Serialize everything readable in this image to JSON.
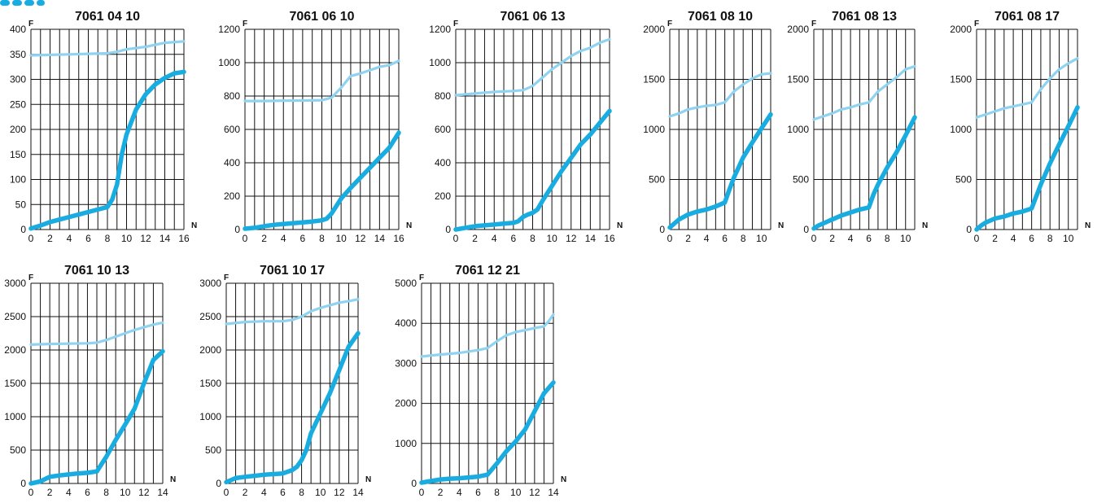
{
  "colors": {
    "upper_line": "#8fd3f1",
    "lower_line": "#19ace0",
    "brand": "#19ace0",
    "grid": "#111111"
  },
  "chart_data": [
    {
      "type": "line",
      "title": "7061 04 10",
      "xlabel": "N",
      "ylabel": "F",
      "xlim": [
        0,
        16
      ],
      "ylim": [
        0,
        400
      ],
      "xticks": [
        0,
        2,
        4,
        6,
        8,
        10,
        12,
        14,
        16
      ],
      "yticks": [
        0,
        50,
        100,
        150,
        200,
        250,
        300,
        350,
        400
      ],
      "series": [
        {
          "x": [
            0,
            2,
            4,
            6,
            8,
            9,
            10,
            12,
            14,
            16
          ],
          "values": [
            348,
            349,
            350,
            351,
            352,
            355,
            360,
            365,
            373,
            376
          ]
        },
        {
          "x": [
            0,
            1,
            2,
            3,
            4,
            5,
            6,
            7,
            8,
            8.5,
            9,
            9.5,
            10,
            11,
            12,
            13,
            14,
            15,
            16
          ],
          "values": [
            2,
            8,
            15,
            20,
            25,
            30,
            35,
            40,
            45,
            60,
            90,
            150,
            190,
            240,
            270,
            290,
            303,
            312,
            315
          ]
        }
      ]
    },
    {
      "type": "line",
      "title": "7061 06 10",
      "xlabel": "N",
      "ylabel": "F",
      "xlim": [
        0,
        16
      ],
      "ylim": [
        0,
        1200
      ],
      "xticks": [
        0,
        2,
        4,
        6,
        8,
        10,
        12,
        14,
        16
      ],
      "yticks": [
        0,
        200,
        400,
        600,
        800,
        1000,
        1200
      ],
      "series": [
        {
          "x": [
            0,
            2,
            4,
            6,
            8,
            9,
            10,
            11,
            12,
            13,
            14,
            15,
            16
          ],
          "values": [
            770,
            770,
            772,
            773,
            775,
            790,
            850,
            920,
            935,
            955,
            975,
            985,
            1010
          ]
        },
        {
          "x": [
            0,
            1,
            2,
            3,
            4,
            5,
            6,
            7,
            8,
            8.5,
            9,
            9.5,
            10,
            11,
            12,
            13,
            14,
            15,
            16
          ],
          "values": [
            5,
            10,
            20,
            28,
            33,
            38,
            43,
            48,
            55,
            65,
            95,
            140,
            185,
            250,
            310,
            370,
            430,
            490,
            580
          ]
        }
      ]
    },
    {
      "type": "line",
      "title": "7061 06 13",
      "xlabel": "N",
      "ylabel": "F",
      "xlim": [
        0,
        16
      ],
      "ylim": [
        0,
        1200
      ],
      "xticks": [
        0,
        2,
        4,
        6,
        8,
        10,
        12,
        14,
        16
      ],
      "yticks": [
        0,
        200,
        400,
        600,
        800,
        1000,
        1200
      ],
      "series": [
        {
          "x": [
            0,
            2,
            4,
            6,
            7,
            8,
            9,
            10,
            11,
            12,
            13,
            14,
            15,
            16
          ],
          "values": [
            805,
            815,
            825,
            830,
            835,
            860,
            910,
            960,
            1000,
            1040,
            1070,
            1090,
            1120,
            1140
          ]
        },
        {
          "x": [
            0,
            1,
            2,
            3,
            4,
            5,
            6,
            6.5,
            7,
            7.5,
            8,
            8.5,
            9,
            10,
            11,
            12,
            13,
            14,
            15,
            16
          ],
          "values": [
            0,
            10,
            20,
            25,
            30,
            35,
            40,
            50,
            75,
            90,
            100,
            120,
            170,
            260,
            350,
            430,
            510,
            570,
            640,
            710
          ]
        }
      ]
    },
    {
      "type": "line",
      "title": "7061 08 10",
      "xlabel": "N",
      "ylabel": "F",
      "xlim": [
        0,
        11
      ],
      "ylim": [
        0,
        2000
      ],
      "xticks": [
        0,
        2,
        4,
        6,
        8,
        10
      ],
      "yticks": [
        0,
        500,
        1000,
        1500,
        2000
      ],
      "series": [
        {
          "x": [
            0,
            1,
            2,
            3,
            4,
            5,
            6,
            7,
            8,
            9,
            10,
            11
          ],
          "values": [
            1130,
            1160,
            1200,
            1220,
            1235,
            1245,
            1270,
            1380,
            1450,
            1510,
            1550,
            1560
          ]
        },
        {
          "x": [
            0,
            0.5,
            1,
            2,
            3,
            4,
            5,
            6,
            6.5,
            7,
            8,
            9,
            10,
            11
          ],
          "values": [
            20,
            60,
            100,
            150,
            180,
            200,
            230,
            270,
            400,
            520,
            720,
            870,
            1010,
            1150
          ]
        }
      ]
    },
    {
      "type": "line",
      "title": "7061 08 13",
      "xlabel": "N",
      "ylabel": "F",
      "xlim": [
        0,
        11
      ],
      "ylim": [
        0,
        2000
      ],
      "xticks": [
        0,
        2,
        4,
        6,
        8,
        10
      ],
      "yticks": [
        0,
        500,
        1000,
        1500,
        2000
      ],
      "series": [
        {
          "x": [
            0,
            1,
            2,
            3,
            4,
            5,
            6,
            7,
            8,
            9,
            10,
            11
          ],
          "values": [
            1100,
            1130,
            1160,
            1200,
            1220,
            1250,
            1270,
            1380,
            1450,
            1520,
            1600,
            1630
          ]
        },
        {
          "x": [
            0,
            0.5,
            1,
            2,
            3,
            4,
            5,
            6,
            6.5,
            7,
            8,
            9,
            10,
            11
          ],
          "values": [
            10,
            40,
            60,
            100,
            140,
            170,
            200,
            220,
            350,
            450,
            620,
            770,
            940,
            1120
          ]
        }
      ]
    },
    {
      "type": "line",
      "title": "7061 08 17",
      "xlabel": "N",
      "ylabel": "F",
      "xlim": [
        0,
        11
      ],
      "ylim": [
        0,
        2000
      ],
      "xticks": [
        0,
        2,
        4,
        6,
        8,
        10
      ],
      "yticks": [
        0,
        500,
        1000,
        1500,
        2000
      ],
      "series": [
        {
          "x": [
            0,
            1,
            2,
            3,
            4,
            5,
            6,
            7,
            8,
            9,
            10,
            11
          ],
          "values": [
            1120,
            1150,
            1180,
            1210,
            1230,
            1250,
            1270,
            1400,
            1510,
            1600,
            1660,
            1710
          ]
        },
        {
          "x": [
            0,
            0.5,
            1,
            2,
            3,
            4,
            5,
            6,
            7,
            8,
            9,
            10,
            11
          ],
          "values": [
            0,
            40,
            70,
            110,
            130,
            160,
            180,
            210,
            450,
            660,
            850,
            1030,
            1220
          ]
        }
      ]
    },
    {
      "type": "line",
      "title": "7061 10 13",
      "xlabel": "N",
      "ylabel": "F",
      "xlim": [
        0,
        14
      ],
      "ylim": [
        0,
        3000
      ],
      "xticks": [
        0,
        2,
        4,
        6,
        8,
        10,
        12,
        14
      ],
      "yticks": [
        0,
        500,
        1000,
        1500,
        2000,
        2500,
        3000
      ],
      "series": [
        {
          "x": [
            0,
            2,
            4,
            6,
            7,
            8,
            9,
            10,
            11,
            12,
            13,
            14
          ],
          "values": [
            2080,
            2090,
            2095,
            2100,
            2110,
            2150,
            2200,
            2250,
            2300,
            2340,
            2380,
            2410
          ]
        },
        {
          "x": [
            0,
            1,
            2,
            3,
            4,
            5,
            6,
            7,
            8,
            9,
            10,
            11,
            12,
            13,
            14
          ],
          "values": [
            0,
            30,
            100,
            120,
            135,
            150,
            160,
            180,
            400,
            650,
            880,
            1120,
            1500,
            1850,
            1980
          ]
        }
      ]
    },
    {
      "type": "line",
      "title": "7061 10 17",
      "xlabel": "N",
      "ylabel": "F",
      "xlim": [
        0,
        14
      ],
      "ylim": [
        0,
        3000
      ],
      "xticks": [
        0,
        2,
        4,
        6,
        8,
        10,
        12,
        14
      ],
      "yticks": [
        0,
        500,
        1000,
        1500,
        2000,
        2500,
        3000
      ],
      "series": [
        {
          "x": [
            0,
            2,
            4,
            6,
            7,
            8,
            9,
            10,
            11,
            12,
            13,
            14
          ],
          "values": [
            2390,
            2420,
            2430,
            2430,
            2450,
            2500,
            2580,
            2630,
            2670,
            2710,
            2730,
            2760
          ]
        },
        {
          "x": [
            0,
            1,
            2,
            3,
            4,
            5,
            6,
            7,
            7.5,
            8,
            8.5,
            9,
            10,
            11,
            12,
            13,
            14
          ],
          "values": [
            20,
            80,
            100,
            115,
            130,
            140,
            150,
            200,
            250,
            350,
            500,
            750,
            1050,
            1350,
            1700,
            2050,
            2250
          ]
        }
      ]
    },
    {
      "type": "line",
      "title": "7061 12 21",
      "xlabel": "N",
      "ylabel": "F",
      "xlim": [
        0,
        14
      ],
      "ylim": [
        0,
        5000
      ],
      "xticks": [
        0,
        2,
        4,
        6,
        8,
        10,
        12,
        14
      ],
      "yticks": [
        0,
        1000,
        2000,
        3000,
        4000,
        5000
      ],
      "series": [
        {
          "x": [
            0,
            2,
            4,
            6,
            7,
            8,
            9,
            10,
            11,
            12,
            13,
            13.5,
            14
          ],
          "values": [
            3170,
            3220,
            3260,
            3330,
            3380,
            3550,
            3700,
            3780,
            3830,
            3880,
            3920,
            4050,
            4220
          ]
        },
        {
          "x": [
            0,
            1,
            2,
            3,
            4,
            5,
            6,
            7,
            8,
            9,
            10,
            11,
            12,
            13,
            14
          ],
          "values": [
            20,
            60,
            100,
            120,
            130,
            150,
            170,
            220,
            500,
            800,
            1050,
            1350,
            1800,
            2250,
            2520
          ]
        }
      ]
    }
  ]
}
